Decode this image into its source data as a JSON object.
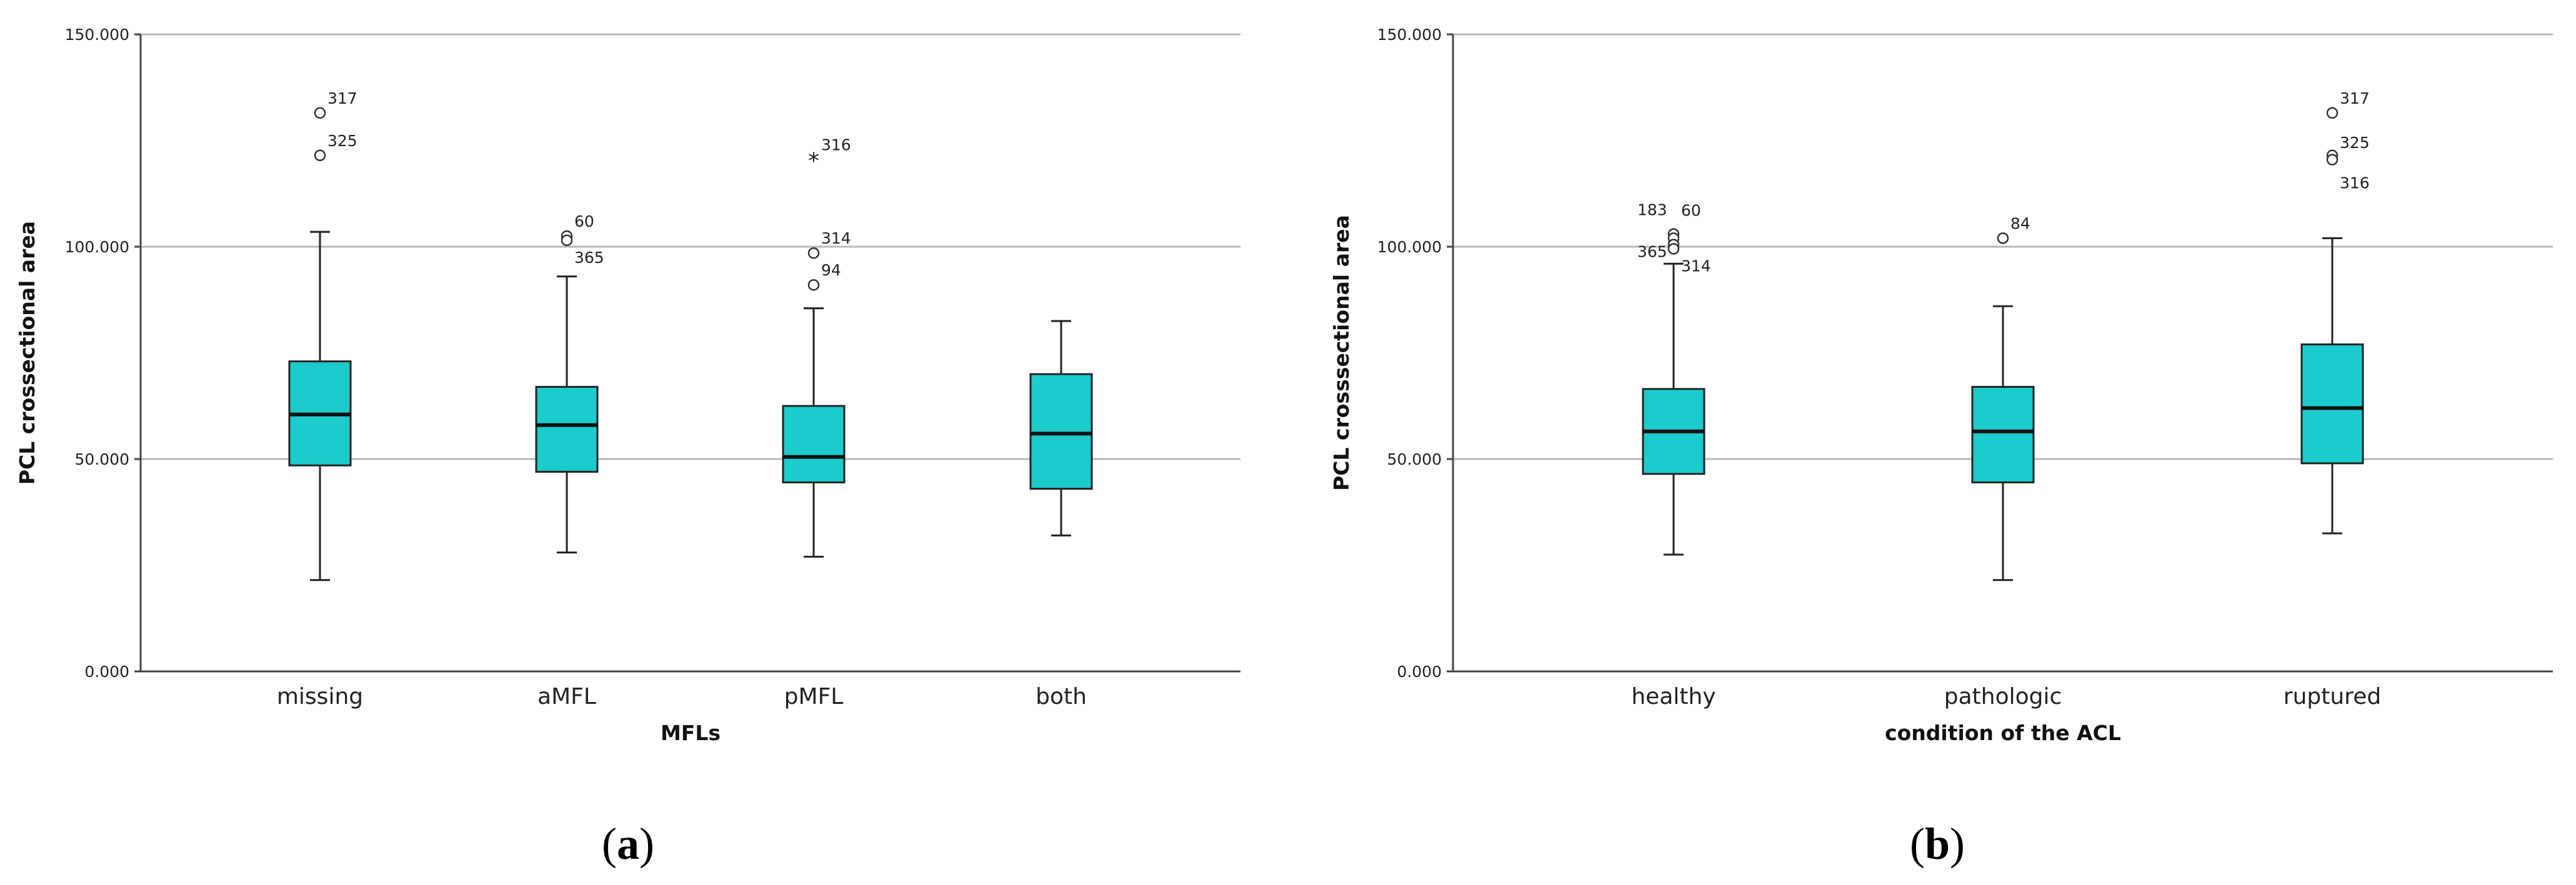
{
  "chart_data": [
    {
      "panel_label": "(a)",
      "type": "box",
      "xlabel": "MFLs",
      "ylabel": "PCL crossectional area",
      "ylim": [
        0,
        150
      ],
      "yticks": [
        0,
        50,
        100,
        150
      ],
      "ytick_labels": [
        "0.000",
        "50.000",
        "100.000",
        "150.000"
      ],
      "grid": "horizontal",
      "box_color": "#1ccbcc",
      "categories": [
        "missing",
        "aMFL",
        "pMFL",
        "both"
      ],
      "boxes": [
        {
          "whisker_low": 21.5,
          "q1": 48.5,
          "median": 60.5,
          "q3": 73,
          "whisker_high": 103.5,
          "outliers": [
            {
              "value": 131.5,
              "label": "317",
              "symbol": "circle"
            },
            {
              "value": 121.5,
              "label": "325",
              "symbol": "circle"
            }
          ]
        },
        {
          "whisker_low": 28,
          "q1": 47,
          "median": 58,
          "q3": 67,
          "whisker_high": 93,
          "outliers": [
            {
              "value": 102.5,
              "label": "60",
              "symbol": "circle"
            },
            {
              "value": 101.5,
              "label": "365",
              "symbol": "circle"
            }
          ]
        },
        {
          "whisker_low": 27,
          "q1": 44.5,
          "median": 50.5,
          "q3": 62.5,
          "whisker_high": 85.5,
          "outliers": [
            {
              "value": 120.5,
              "label": "316",
              "symbol": "star"
            },
            {
              "value": 98.5,
              "label": "314",
              "symbol": "circle"
            },
            {
              "value": 91,
              "label": "94",
              "symbol": "circle"
            }
          ]
        },
        {
          "whisker_low": 32,
          "q1": 43,
          "median": 56,
          "q3": 70,
          "whisker_high": 82.5,
          "outliers": []
        }
      ]
    },
    {
      "panel_label": "(b)",
      "type": "box",
      "xlabel": "condition of the ACL",
      "ylabel": "PCL crosssectional area",
      "ylim": [
        0,
        150
      ],
      "yticks": [
        0,
        50,
        100,
        150
      ],
      "ytick_labels": [
        "0.000",
        "50.000",
        "100.000",
        "150.000"
      ],
      "grid": "horizontal",
      "box_color": "#1ccbcc",
      "categories": [
        "healthy",
        "pathologic",
        "ruptured"
      ],
      "boxes": [
        {
          "whisker_low": 27.5,
          "q1": 46.5,
          "median": 56.5,
          "q3": 66.5,
          "whisker_high": 96,
          "outliers": [
            {
              "value": 103,
              "label": "183",
              "symbol": "circle"
            },
            {
              "value": 102,
              "label": "60",
              "symbol": "circle"
            },
            {
              "value": 100.5,
              "label": "365",
              "symbol": "circle"
            },
            {
              "value": 99.5,
              "label": "314",
              "symbol": "circle"
            }
          ]
        },
        {
          "whisker_low": 21.5,
          "q1": 44.5,
          "median": 56.5,
          "q3": 67,
          "whisker_high": 86,
          "outliers": [
            {
              "value": 102,
              "label": "84",
              "symbol": "circle"
            }
          ]
        },
        {
          "whisker_low": 32.5,
          "q1": 49,
          "median": 62,
          "q3": 77,
          "whisker_high": 102,
          "outliers": [
            {
              "value": 131.5,
              "label": "317",
              "symbol": "circle"
            },
            {
              "value": 121.5,
              "label": "325",
              "symbol": "circle"
            },
            {
              "value": 120.5,
              "label": "316",
              "symbol": "circle"
            }
          ]
        }
      ]
    }
  ]
}
